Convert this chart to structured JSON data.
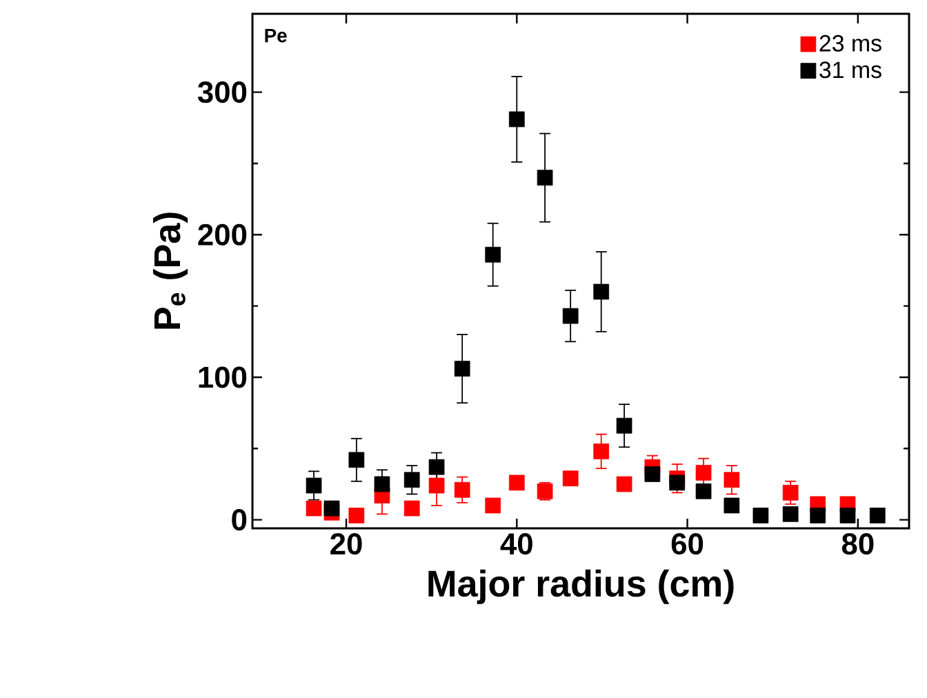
{
  "chart_data": {
    "type": "scatter",
    "xlabel": "Major radius (cm)",
    "ylabel": "P$_{e}$ (Pa)",
    "annotations": [
      "Pe"
    ],
    "xlim": [
      9,
      86
    ],
    "xticks": [
      20,
      40,
      60,
      80
    ],
    "ylim": [
      -6,
      355
    ],
    "yticks": [
      0,
      100,
      200,
      300
    ],
    "grid": false,
    "legend": "top right",
    "marker": "square",
    "series": [
      {
        "name": "23 ms",
        "color": "#ff0000",
        "x": [
          16.2,
          18.3,
          21.2,
          24.2,
          27.7,
          30.6,
          33.6,
          37.2,
          40,
          43.3,
          46.3,
          49.9,
          52.6,
          55.9,
          58.8,
          61.9,
          65.2,
          72.1,
          75.3,
          78.8
        ],
        "values": [
          8,
          5,
          3,
          17,
          8,
          24,
          21,
          10,
          26,
          20,
          29,
          48,
          25,
          37,
          29,
          33,
          28,
          19,
          11,
          11
        ],
        "errors": [
          null,
          null,
          null,
          13,
          null,
          14,
          9,
          null,
          3,
          6,
          null,
          12,
          null,
          8,
          10,
          10,
          10,
          8,
          null,
          null
        ]
      },
      {
        "name": "31 ms",
        "color": "#000000",
        "x": [
          16.2,
          18.3,
          21.2,
          24.2,
          27.7,
          30.6,
          33.6,
          37.2,
          40,
          43.3,
          46.3,
          49.9,
          52.6,
          55.9,
          58.8,
          61.9,
          65.2,
          68.6,
          72.1,
          75.3,
          78.8,
          82.3
        ],
        "values": [
          24,
          8,
          42,
          25,
          28,
          37,
          106,
          186,
          281,
          240,
          143,
          160,
          66,
          32,
          26,
          20,
          10,
          3,
          4,
          3,
          3,
          3
        ],
        "errors": [
          10,
          null,
          15,
          10,
          10,
          10,
          24,
          22,
          30,
          31,
          18,
          28,
          15,
          null,
          null,
          null,
          null,
          null,
          null,
          null,
          null,
          null
        ]
      }
    ]
  }
}
